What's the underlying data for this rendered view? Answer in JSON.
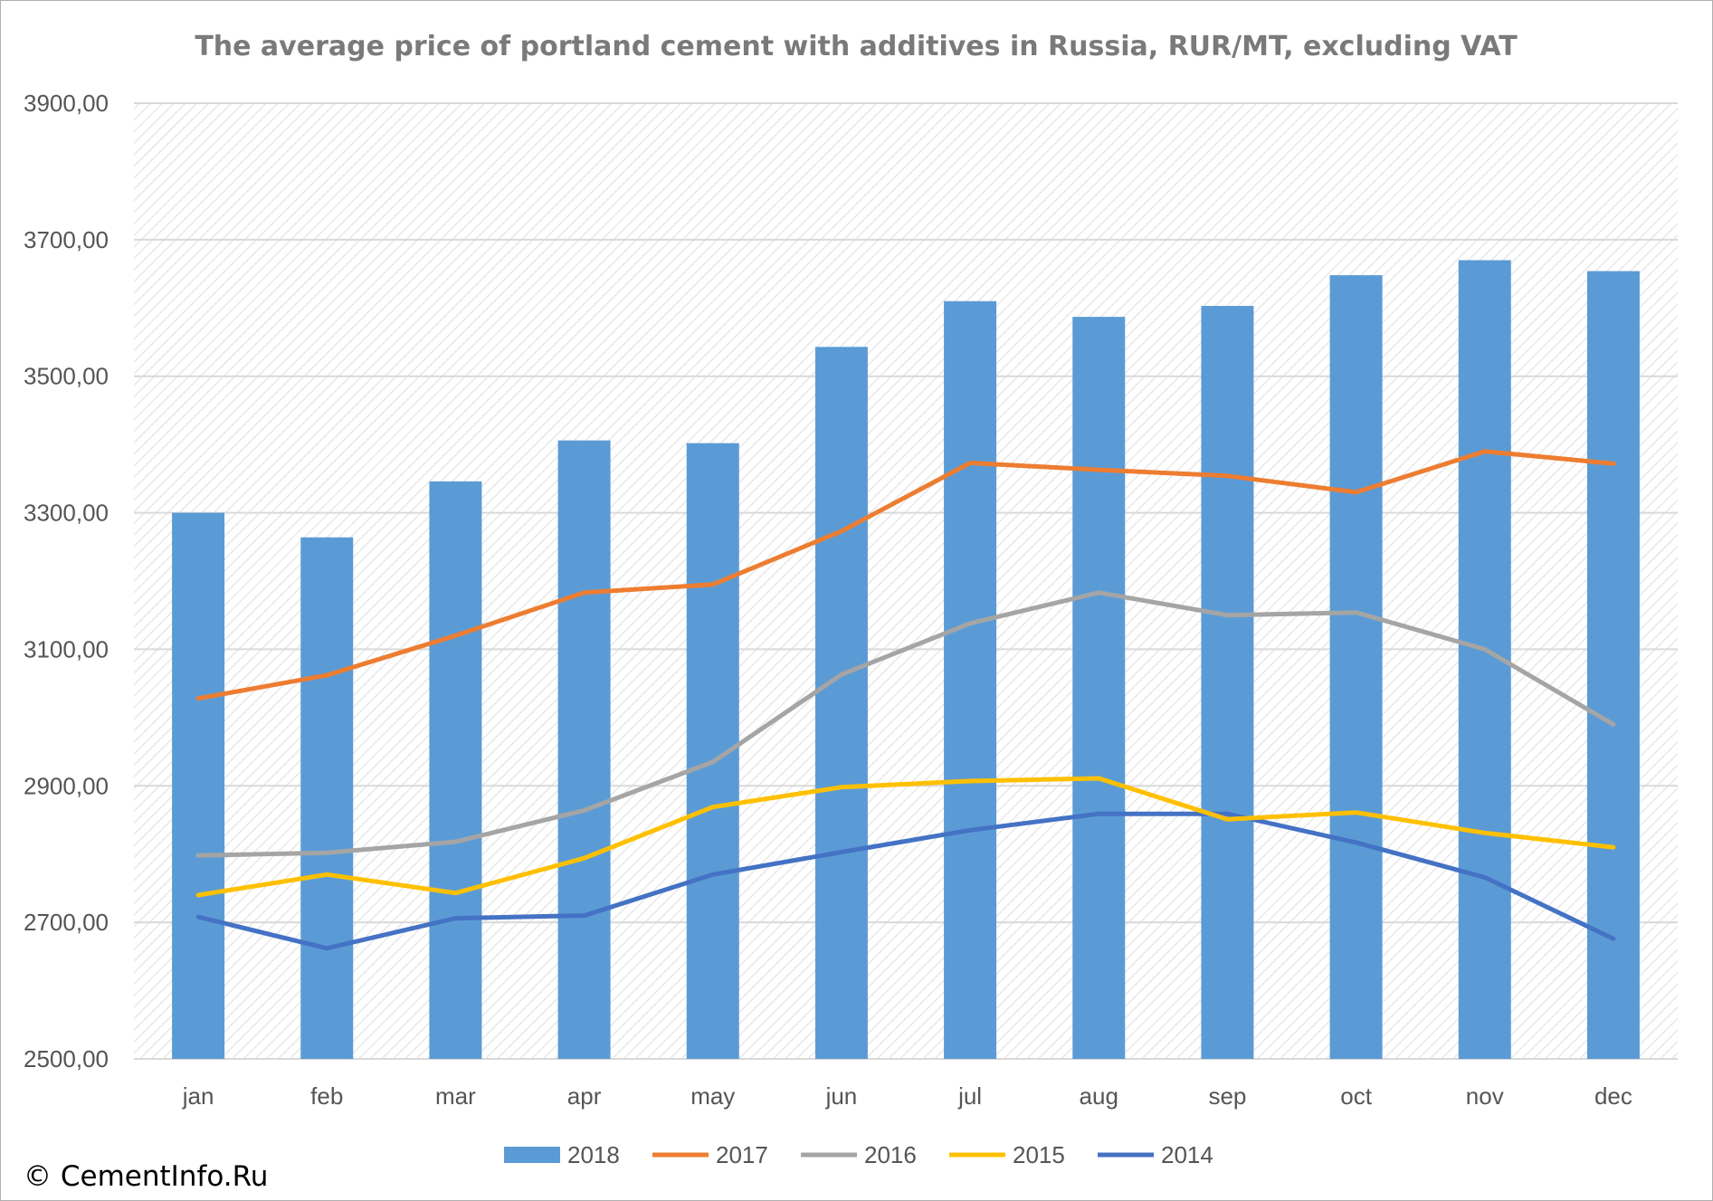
{
  "copyright": "© CementInfo.Ru",
  "colors": {
    "2018": "#5b9bd5",
    "2017": "#ed7d31",
    "2016": "#a5a5a5",
    "2015": "#ffc000",
    "2014": "#4472c4",
    "grid": "#d9d9d9",
    "text": "#555555",
    "title": "#7a7a7a"
  },
  "chart_data": {
    "type": "bar",
    "title": "The average price of portland cement with additives in Russia, RUR/MT, excluding VAT",
    "xlabel": "",
    "ylabel": "",
    "categories": [
      "jan",
      "feb",
      "mar",
      "apr",
      "may",
      "jun",
      "jul",
      "aug",
      "sep",
      "oct",
      "nov",
      "dec"
    ],
    "ylim": [
      2500,
      3900
    ],
    "yticks": [
      "2500,00",
      "2700,00",
      "2900,00",
      "3100,00",
      "3300,00",
      "3500,00",
      "3700,00",
      "3900,00"
    ],
    "ytick_values": [
      2500,
      2700,
      2900,
      3100,
      3300,
      3500,
      3700,
      3900
    ],
    "grid": true,
    "legend_position": "bottom",
    "series": [
      {
        "name": "2018",
        "type": "bar",
        "values": [
          3300,
          3264,
          3346,
          3406,
          3402,
          3543,
          3610,
          3587,
          3603,
          3648,
          3670,
          3654
        ]
      },
      {
        "name": "2017",
        "type": "line",
        "values": [
          3028,
          3062,
          3120,
          3183,
          3195,
          3273,
          3373,
          3363,
          3354,
          3330,
          3390,
          3372
        ]
      },
      {
        "name": "2016",
        "type": "line",
        "values": [
          2798,
          2802,
          2818,
          2864,
          2935,
          3063,
          3138,
          3183,
          3150,
          3154,
          3100,
          2990
        ]
      },
      {
        "name": "2015",
        "type": "line",
        "values": [
          2740,
          2770,
          2743,
          2794,
          2869,
          2898,
          2907,
          2911,
          2851,
          2861,
          2831,
          2810
        ]
      },
      {
        "name": "2014",
        "type": "line",
        "values": [
          2708,
          2662,
          2706,
          2710,
          2770,
          2803,
          2835,
          2859,
          2859,
          2817,
          2766,
          2676
        ]
      }
    ]
  }
}
